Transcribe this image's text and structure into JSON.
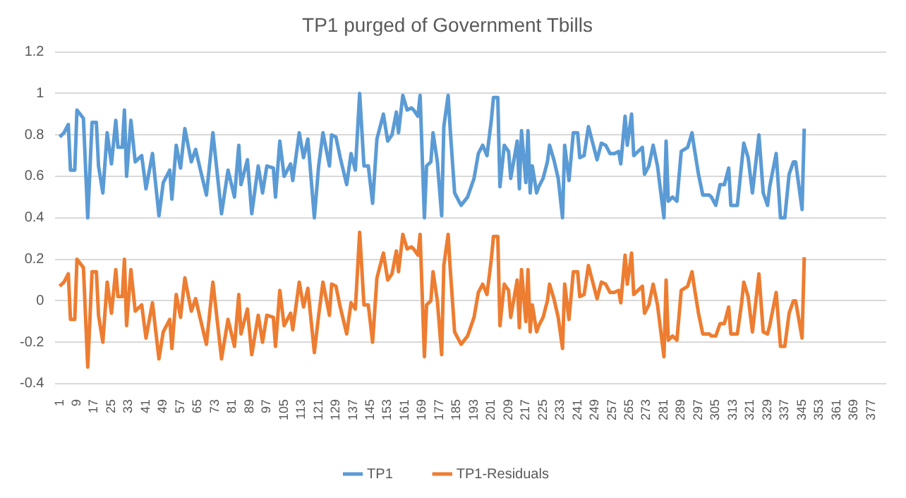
{
  "chart_data": {
    "type": "line",
    "title": "TP1 purged of Government Tbills",
    "legend": "bottom",
    "grid": "y",
    "marker": "none",
    "line_style": "solid",
    "xlim": [
      -1,
      384
    ],
    "xticks": [
      1,
      9,
      17,
      25,
      33,
      41,
      49,
      57,
      65,
      73,
      81,
      89,
      97,
      105,
      113,
      121,
      129,
      137,
      145,
      153,
      161,
      169,
      177,
      185,
      193,
      201,
      209,
      217,
      225,
      233,
      241,
      249,
      257,
      265,
      273,
      281,
      289,
      297,
      305,
      313,
      321,
      329,
      337,
      345,
      353,
      361,
      369,
      377
    ],
    "ylim": [
      -0.4,
      1.2
    ],
    "yticks": [
      -0.4,
      -0.2,
      0,
      0.2,
      0.4,
      0.6,
      0.8,
      1,
      1.2
    ],
    "series": [
      {
        "name": "TP1",
        "color": "#5b9bd5",
        "x": [
          1,
          3,
          5,
          6,
          8,
          9,
          12,
          14,
          16,
          18,
          19,
          21,
          23,
          25,
          27,
          28,
          30,
          31,
          32,
          34,
          36,
          39,
          41,
          44,
          47,
          49,
          52,
          53,
          55,
          57,
          59,
          62,
          64,
          66,
          69,
          72,
          76,
          79,
          82,
          84,
          85,
          88,
          90,
          93,
          95,
          97,
          100,
          101,
          103,
          105,
          108,
          109,
          112,
          114,
          116,
          119,
          121,
          123,
          126,
          127,
          129,
          131,
          134,
          136,
          138,
          140,
          142,
          144,
          146,
          148,
          151,
          153,
          155,
          157,
          158,
          160,
          162,
          164,
          165,
          167,
          168,
          170,
          171,
          173,
          174,
          176,
          178,
          179,
          181,
          182,
          184,
          187,
          190,
          193,
          195,
          197,
          199,
          201,
          202,
          204,
          205,
          207,
          209,
          210,
          213,
          214,
          215,
          217,
          218,
          219,
          220,
          222,
          223,
          225,
          227,
          228,
          230,
          232,
          234,
          235,
          237,
          239,
          241,
          242,
          244,
          246,
          248,
          250,
          252,
          254,
          256,
          258,
          260,
          261,
          263,
          264,
          266,
          267,
          269,
          271,
          272,
          274,
          276,
          278,
          281,
          282,
          283,
          285,
          287,
          289,
          292,
          294,
          295,
          297,
          299,
          302,
          303,
          305,
          307,
          309,
          311,
          312,
          315,
          317,
          318,
          320,
          322,
          325,
          327,
          329,
          330,
          333,
          335,
          337,
          339,
          341,
          342,
          345,
          346
        ],
        "values": [
          0.79,
          0.81,
          0.85,
          0.63,
          0.63,
          0.92,
          0.88,
          0.4,
          0.86,
          0.86,
          0.65,
          0.52,
          0.81,
          0.66,
          0.87,
          0.74,
          0.74,
          0.92,
          0.6,
          0.87,
          0.67,
          0.7,
          0.54,
          0.71,
          0.41,
          0.57,
          0.63,
          0.49,
          0.75,
          0.64,
          0.83,
          0.67,
          0.73,
          0.64,
          0.51,
          0.81,
          0.42,
          0.63,
          0.5,
          0.75,
          0.56,
          0.68,
          0.42,
          0.65,
          0.52,
          0.65,
          0.64,
          0.5,
          0.77,
          0.6,
          0.66,
          0.58,
          0.81,
          0.69,
          0.78,
          0.4,
          0.65,
          0.81,
          0.65,
          0.8,
          0.79,
          0.69,
          0.56,
          0.71,
          0.63,
          1.0,
          0.65,
          0.65,
          0.47,
          0.78,
          0.9,
          0.77,
          0.8,
          0.91,
          0.81,
          0.99,
          0.92,
          0.93,
          0.92,
          0.89,
          0.99,
          0.4,
          0.65,
          0.67,
          0.81,
          0.67,
          0.41,
          0.84,
          0.99,
          0.82,
          0.52,
          0.46,
          0.5,
          0.59,
          0.71,
          0.75,
          0.7,
          0.87,
          0.98,
          0.98,
          0.55,
          0.75,
          0.72,
          0.59,
          0.77,
          0.54,
          0.82,
          0.57,
          0.82,
          0.52,
          0.65,
          0.52,
          0.55,
          0.59,
          0.67,
          0.75,
          0.68,
          0.59,
          0.4,
          0.75,
          0.58,
          0.81,
          0.81,
          0.69,
          0.7,
          0.84,
          0.76,
          0.68,
          0.76,
          0.75,
          0.71,
          0.71,
          0.72,
          0.66,
          0.89,
          0.75,
          0.9,
          0.7,
          0.72,
          0.74,
          0.61,
          0.65,
          0.75,
          0.65,
          0.4,
          0.77,
          0.48,
          0.5,
          0.48,
          0.72,
          0.74,
          0.81,
          0.74,
          0.61,
          0.51,
          0.51,
          0.5,
          0.46,
          0.56,
          0.56,
          0.64,
          0.46,
          0.46,
          0.66,
          0.76,
          0.69,
          0.52,
          0.8,
          0.52,
          0.46,
          0.55,
          0.71,
          0.4,
          0.4,
          0.61,
          0.67,
          0.67,
          0.44,
          0.83
        ]
      },
      {
        "name": "TP1-Residuals",
        "color": "#ed7d31",
        "x": [
          1,
          3,
          5,
          6,
          8,
          9,
          12,
          14,
          16,
          18,
          19,
          21,
          23,
          25,
          27,
          28,
          30,
          31,
          32,
          34,
          36,
          39,
          41,
          44,
          47,
          49,
          52,
          53,
          55,
          57,
          59,
          62,
          64,
          66,
          69,
          72,
          76,
          79,
          82,
          84,
          85,
          88,
          90,
          93,
          95,
          97,
          100,
          101,
          103,
          105,
          108,
          109,
          112,
          114,
          116,
          119,
          121,
          123,
          126,
          127,
          129,
          131,
          134,
          136,
          138,
          140,
          142,
          144,
          146,
          148,
          151,
          153,
          155,
          157,
          158,
          160,
          162,
          164,
          165,
          167,
          168,
          170,
          171,
          173,
          174,
          176,
          178,
          179,
          181,
          182,
          184,
          187,
          190,
          193,
          195,
          197,
          199,
          201,
          202,
          204,
          205,
          207,
          209,
          210,
          213,
          214,
          215,
          217,
          218,
          219,
          220,
          222,
          223,
          225,
          227,
          228,
          230,
          232,
          234,
          235,
          237,
          239,
          241,
          242,
          244,
          246,
          248,
          250,
          252,
          254,
          256,
          258,
          260,
          261,
          263,
          264,
          266,
          267,
          269,
          271,
          272,
          274,
          276,
          278,
          281,
          282,
          283,
          285,
          287,
          289,
          292,
          294,
          295,
          297,
          299,
          302,
          303,
          305,
          307,
          309,
          311,
          312,
          315,
          317,
          318,
          320,
          322,
          325,
          327,
          329,
          330,
          333,
          335,
          337,
          339,
          341,
          342,
          345,
          346
        ],
        "values": [
          0.07,
          0.09,
          0.13,
          -0.09,
          -0.09,
          0.2,
          0.16,
          -0.32,
          0.14,
          0.14,
          -0.07,
          -0.2,
          0.09,
          -0.06,
          0.15,
          0.02,
          0.02,
          0.2,
          -0.12,
          0.15,
          -0.05,
          -0.02,
          -0.18,
          -0.01,
          -0.28,
          -0.15,
          -0.09,
          -0.23,
          0.03,
          -0.08,
          0.11,
          -0.05,
          0.01,
          -0.08,
          -0.21,
          0.09,
          -0.28,
          -0.09,
          -0.22,
          0.03,
          -0.16,
          -0.04,
          -0.26,
          -0.07,
          -0.2,
          -0.07,
          -0.08,
          -0.22,
          0.05,
          -0.12,
          -0.06,
          -0.14,
          0.09,
          -0.03,
          0.06,
          -0.25,
          -0.07,
          0.09,
          -0.07,
          0.08,
          0.07,
          -0.03,
          -0.16,
          -0.01,
          -0.04,
          0.33,
          -0.02,
          -0.02,
          -0.2,
          0.11,
          0.23,
          0.1,
          0.13,
          0.24,
          0.14,
          0.32,
          0.25,
          0.26,
          0.25,
          0.22,
          0.32,
          -0.27,
          -0.02,
          0.0,
          0.14,
          0.0,
          -0.26,
          0.17,
          0.32,
          0.15,
          -0.15,
          -0.21,
          -0.17,
          -0.08,
          0.04,
          0.08,
          0.03,
          0.2,
          0.31,
          0.31,
          -0.12,
          0.08,
          0.05,
          -0.08,
          0.1,
          -0.13,
          0.15,
          -0.1,
          0.15,
          -0.15,
          -0.02,
          -0.15,
          -0.12,
          -0.08,
          0.0,
          0.08,
          0.01,
          -0.08,
          -0.23,
          0.08,
          -0.09,
          0.14,
          0.14,
          0.02,
          0.03,
          0.17,
          0.09,
          0.01,
          0.09,
          0.08,
          0.04,
          0.04,
          0.05,
          -0.01,
          0.22,
          0.08,
          0.23,
          0.03,
          0.05,
          0.07,
          -0.06,
          -0.02,
          0.08,
          -0.02,
          -0.27,
          0.1,
          -0.19,
          -0.17,
          -0.19,
          0.05,
          0.07,
          0.14,
          0.07,
          -0.06,
          -0.16,
          -0.16,
          -0.17,
          -0.17,
          -0.11,
          -0.11,
          -0.03,
          -0.16,
          -0.16,
          -0.01,
          0.09,
          0.02,
          -0.15,
          0.13,
          -0.15,
          -0.16,
          -0.12,
          0.04,
          -0.22,
          -0.22,
          -0.06,
          0.0,
          0.0,
          -0.18,
          0.21
        ]
      }
    ]
  }
}
